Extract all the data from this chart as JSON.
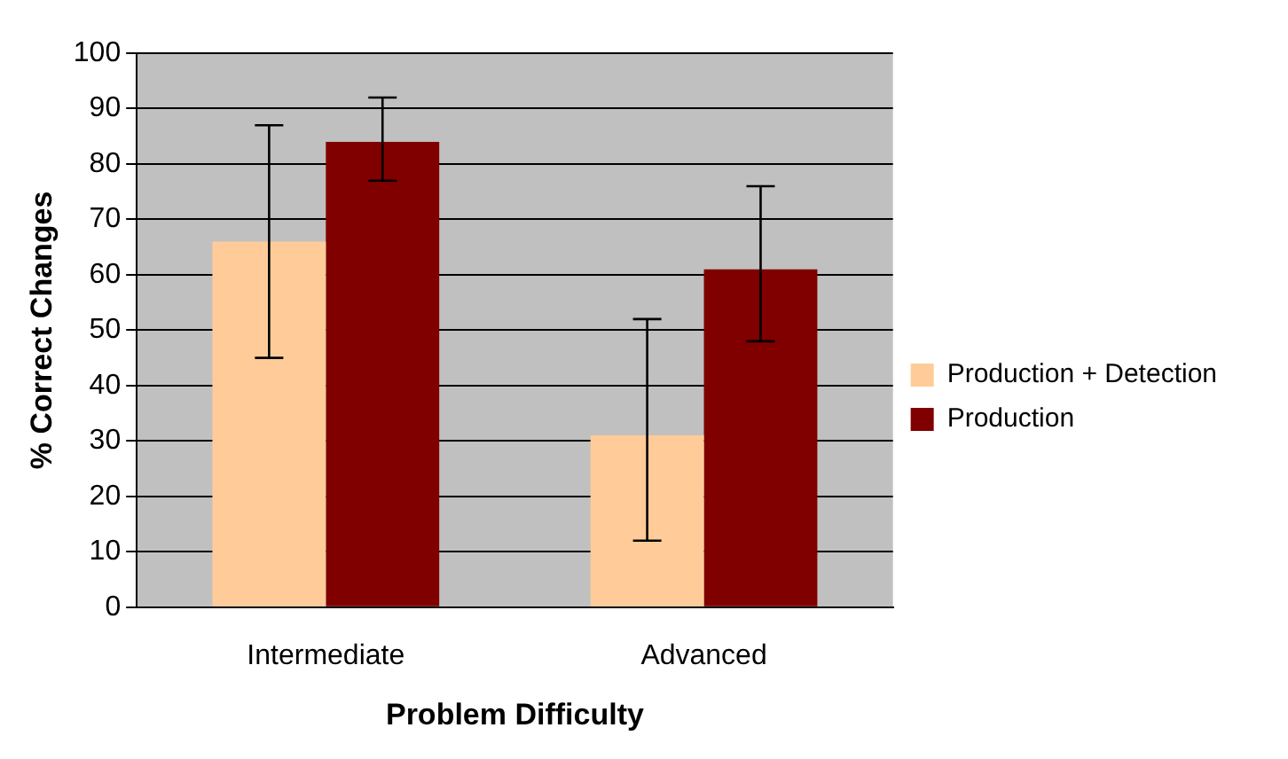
{
  "chart_data": {
    "type": "bar",
    "xlabel": "Problem Difficulty",
    "ylabel": "% Correct Changes",
    "categories": [
      "Intermediate",
      "Advanced"
    ],
    "series": [
      {
        "name": "Production + Detection",
        "color": "#ffcc99",
        "values": [
          66,
          31
        ],
        "errors": [
          [
            45,
            87
          ],
          [
            12,
            52
          ]
        ]
      },
      {
        "name": "Production",
        "color": "#800000",
        "values": [
          84,
          61
        ],
        "errors": [
          [
            77,
            92
          ],
          [
            48,
            76
          ]
        ]
      }
    ],
    "ylim": [
      0,
      100
    ],
    "yticks": [
      0,
      10,
      20,
      30,
      40,
      50,
      60,
      70,
      80,
      90,
      100
    ],
    "grid": "y",
    "legend": "right"
  }
}
